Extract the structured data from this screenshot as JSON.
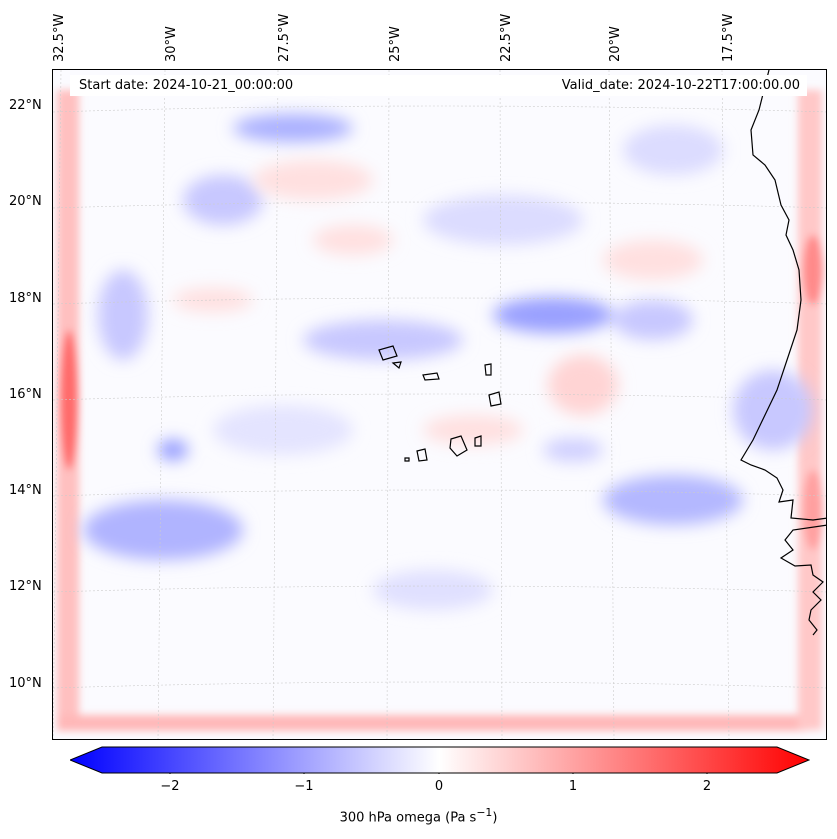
{
  "map": {
    "header": {
      "start_date": "Start date: 2024-10-21_00:00:00",
      "valid_date": "Valid_date: 2024-10-22T17:00:00.00"
    },
    "longitude_labels": [
      "32.5°W",
      "30°W",
      "27.5°W",
      "25°W",
      "22.5°W",
      "20°W",
      "17.5°W"
    ],
    "latitude_labels": [
      "22°N",
      "20°N",
      "18°N",
      "16°N",
      "14°N",
      "12°N",
      "10°N"
    ],
    "variable": "300 hPa omega",
    "units": "Pa s",
    "units_exponent": "−1",
    "colorbar": {
      "range": [
        -2.7,
        2.7
      ],
      "ticks": [
        "−2",
        "−1",
        "0",
        "1",
        "2"
      ],
      "tick_values": [
        -2,
        -1,
        0,
        1,
        2
      ],
      "colors": {
        "min": "#0000ff",
        "mid": "#ffffff",
        "max": "#ff0000"
      }
    },
    "features": [
      "coastline-west-africa",
      "cape-verde-islands"
    ]
  }
}
